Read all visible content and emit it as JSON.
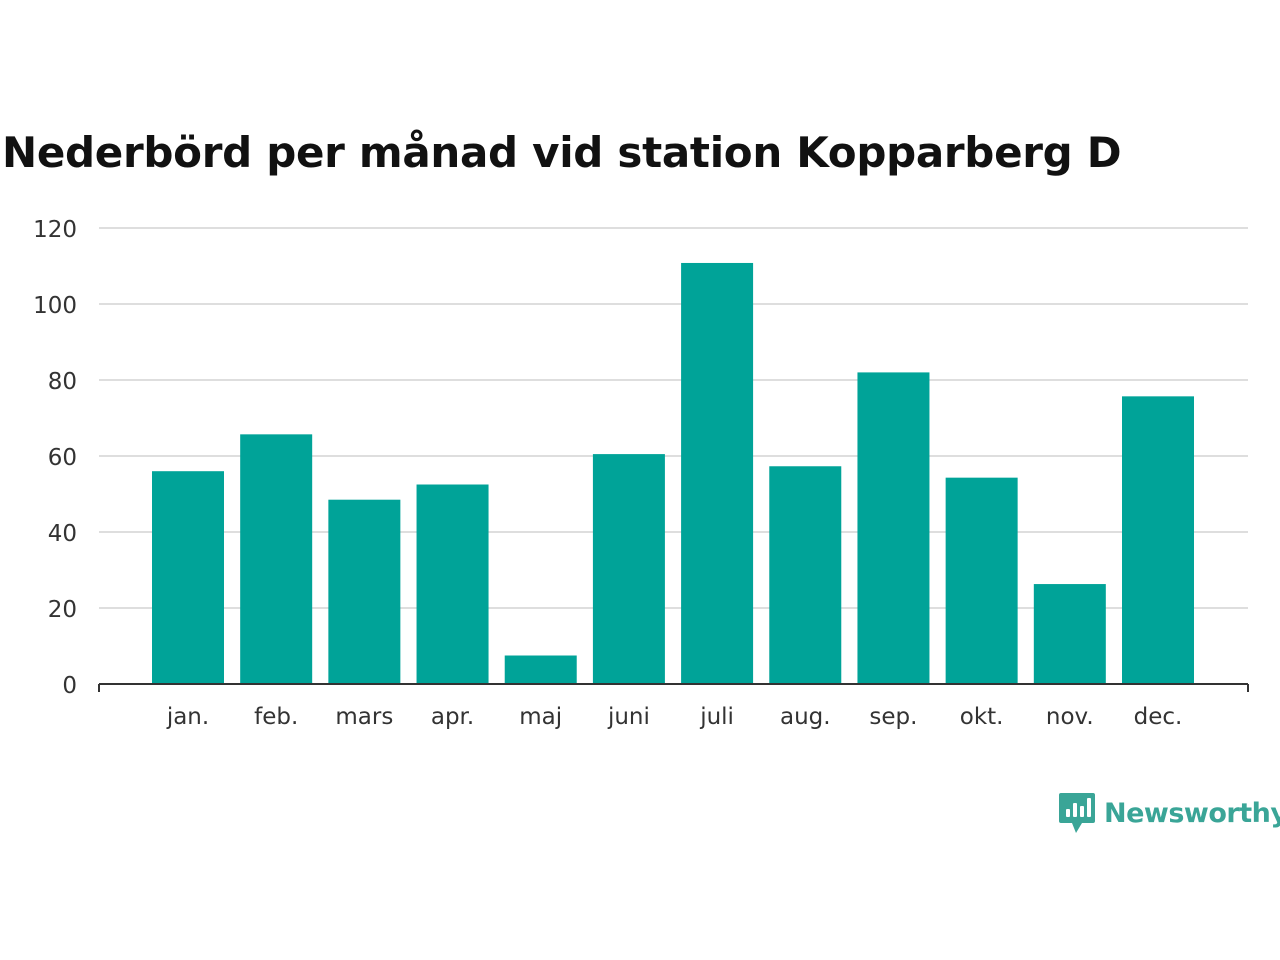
{
  "chart_data": {
    "type": "bar",
    "title": "Nederbörd per månad vid station Kopparberg D",
    "categories": [
      "jan.",
      "feb.",
      "mars",
      "apr.",
      "maj",
      "juni",
      "juli",
      "aug.",
      "sep.",
      "okt.",
      "nov.",
      "dec."
    ],
    "values": [
      56,
      65.7,
      48.5,
      52.5,
      7.5,
      60.5,
      110.8,
      57.3,
      82,
      54.3,
      26.3,
      75.7
    ],
    "xlabel": "",
    "ylabel": "",
    "ylim": [
      0,
      120
    ],
    "yticks": [
      0,
      20,
      40,
      60,
      80,
      100,
      120
    ],
    "grid": true,
    "bar_color": "#00a398"
  },
  "brand": {
    "name": "Newsworthy",
    "icon": "newsworthy-logo-icon",
    "color": "#3aa597"
  }
}
